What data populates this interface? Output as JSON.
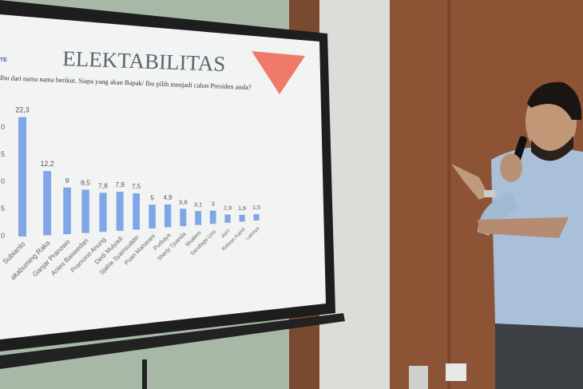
{
  "slide": {
    "title": "ELEKTABILITAS",
    "corner_label": "TE",
    "question": "Ibu dari nama nama berikut. Siapa yang akan Bapak/ Ibu pilih menjadi calon Presiden anda?",
    "accent_color": "#f07a6a",
    "bar_color": "#7fa6e6"
  },
  "chart_data": {
    "type": "bar",
    "title": "ELEKTABILITAS",
    "categories": [
      "Subianto",
      "akabuming Raka",
      "Ganjar Pranowo",
      "Anies Baswedan",
      "Pramono Anung",
      "Dedi Mulyadi",
      "Sjafrie Syamsuddin",
      "Puan Maharani",
      "Purbaya",
      "Sherly Tjoanda",
      "Mualem",
      "Sandiaga Uno",
      "AHY",
      "Ridwan Kamil",
      "Lainnya"
    ],
    "values": [
      22.3,
      12.2,
      9,
      8.5,
      7.8,
      7.9,
      7.5,
      5,
      4.9,
      3.8,
      3.1,
      3,
      1.9,
      1.6,
      1.5
    ],
    "value_labels": [
      "22,3",
      "12,2",
      "9",
      "8,5",
      "7,8",
      "7,9",
      "7,5",
      "5",
      "4,9",
      "3,8",
      "3,1",
      "3",
      "1,9",
      "1,6",
      "1,5"
    ],
    "y_ticks": [
      "0",
      "5",
      "0",
      "5",
      "0"
    ],
    "ylim": [
      0,
      25
    ],
    "grid": false
  }
}
